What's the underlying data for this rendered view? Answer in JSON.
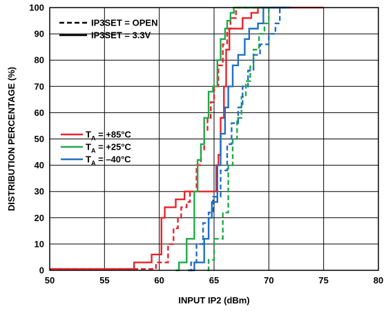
{
  "chart_data": {
    "type": "line",
    "title": "",
    "xlabel": "INPUT IP2 (dBm)",
    "ylabel": "DISTRIBUTION PERCENTAGE (%)",
    "xlim": [
      50,
      80
    ],
    "ylim": [
      0,
      100
    ],
    "x_ticks": [
      "50",
      "55",
      "60",
      "65",
      "70",
      "75",
      "80"
    ],
    "y_ticks": [
      "0",
      "10",
      "20",
      "30",
      "40",
      "50",
      "60",
      "70",
      "80",
      "90",
      "100"
    ],
    "grid": true,
    "style_legend": [
      {
        "label": "IP3SET = OPEN",
        "dash": "dashed"
      },
      {
        "label": "IP3SET = 3.3V",
        "dash": "solid"
      }
    ],
    "color_legend": [
      {
        "prefix": "T",
        "sub": "A",
        "suffix": " = +85°C",
        "color": "#e8232a"
      },
      {
        "prefix": "T",
        "sub": "A",
        "suffix": " = +25°C",
        "color": "#1faa4a"
      },
      {
        "prefix": "T",
        "sub": "A",
        "suffix": " = –40°C",
        "color": "#1f6fc4"
      }
    ],
    "series": [
      {
        "temp": "+85°C",
        "ip3set": "3.3V",
        "color": "#e8232a",
        "dash": "solid",
        "points": [
          [
            50,
            0.5
          ],
          [
            57.7,
            0.5
          ],
          [
            57.7,
            3
          ],
          [
            59.3,
            3
          ],
          [
            59.3,
            6
          ],
          [
            60.2,
            6
          ],
          [
            60.2,
            20
          ],
          [
            60.5,
            20
          ],
          [
            60.5,
            24
          ],
          [
            61.5,
            24
          ],
          [
            61.5,
            27
          ],
          [
            62.3,
            27
          ],
          [
            62.3,
            30
          ],
          [
            65.2,
            30
          ],
          [
            65.2,
            40
          ],
          [
            65.4,
            40
          ],
          [
            65.4,
            44
          ],
          [
            65.6,
            44
          ],
          [
            65.6,
            58
          ],
          [
            65.9,
            58
          ],
          [
            65.9,
            70
          ],
          [
            66.1,
            70
          ],
          [
            66.1,
            84
          ],
          [
            66.4,
            84
          ],
          [
            66.4,
            92
          ],
          [
            67.6,
            92
          ],
          [
            67.6,
            96
          ],
          [
            68.4,
            96
          ],
          [
            68.4,
            98
          ],
          [
            69.0,
            98
          ],
          [
            69.0,
            100
          ],
          [
            75,
            100
          ]
        ]
      },
      {
        "temp": "+85°C",
        "ip3set": "OPEN",
        "color": "#e8232a",
        "dash": "dashed",
        "points": [
          [
            50,
            0.5
          ],
          [
            59.7,
            0.5
          ],
          [
            59.7,
            3
          ],
          [
            60.8,
            3
          ],
          [
            60.8,
            10
          ],
          [
            61.3,
            10
          ],
          [
            61.3,
            16
          ],
          [
            61.7,
            16
          ],
          [
            61.7,
            20
          ],
          [
            62.0,
            20
          ],
          [
            62.0,
            24
          ],
          [
            62.5,
            24
          ],
          [
            62.5,
            26
          ],
          [
            62.8,
            26
          ],
          [
            62.8,
            30
          ],
          [
            63.4,
            30
          ],
          [
            63.4,
            40
          ],
          [
            63.8,
            40
          ],
          [
            63.8,
            46
          ],
          [
            64.1,
            46
          ],
          [
            64.1,
            53
          ],
          [
            64.4,
            53
          ],
          [
            64.4,
            58
          ],
          [
            64.7,
            58
          ],
          [
            64.7,
            64
          ],
          [
            65.0,
            64
          ],
          [
            65.0,
            70
          ],
          [
            65.4,
            70
          ],
          [
            65.4,
            78
          ],
          [
            65.8,
            78
          ],
          [
            65.8,
            86
          ],
          [
            66.2,
            86
          ],
          [
            66.2,
            92
          ],
          [
            66.5,
            92
          ],
          [
            66.5,
            96
          ],
          [
            67.0,
            96
          ],
          [
            67.0,
            100
          ],
          [
            69.5,
            100
          ]
        ]
      },
      {
        "temp": "+25°C",
        "ip3set": "3.3V",
        "color": "#1faa4a",
        "dash": "solid",
        "points": [
          [
            61.5,
            0
          ],
          [
            61.8,
            0
          ],
          [
            61.8,
            3
          ],
          [
            62.5,
            3
          ],
          [
            62.5,
            12
          ],
          [
            63.2,
            12
          ],
          [
            63.2,
            30
          ],
          [
            63.5,
            30
          ],
          [
            63.5,
            42
          ],
          [
            63.8,
            42
          ],
          [
            63.8,
            48
          ],
          [
            64.1,
            48
          ],
          [
            64.1,
            58
          ],
          [
            64.5,
            58
          ],
          [
            64.5,
            68
          ],
          [
            64.9,
            68
          ],
          [
            64.9,
            70
          ],
          [
            65.3,
            70
          ],
          [
            65.3,
            80
          ],
          [
            65.6,
            80
          ],
          [
            65.6,
            88
          ],
          [
            66.0,
            88
          ],
          [
            66.0,
            92
          ],
          [
            66.2,
            92
          ],
          [
            66.2,
            95
          ],
          [
            66.5,
            95
          ],
          [
            66.5,
            98
          ],
          [
            66.8,
            98
          ],
          [
            66.8,
            100
          ],
          [
            69.5,
            100
          ]
        ]
      },
      {
        "temp": "+25°C",
        "ip3set": "OPEN",
        "color": "#1faa4a",
        "dash": "dashed",
        "points": [
          [
            64.4,
            0
          ],
          [
            64.5,
            0
          ],
          [
            64.5,
            4
          ],
          [
            65.0,
            4
          ],
          [
            65.0,
            12
          ],
          [
            65.8,
            12
          ],
          [
            65.8,
            22
          ],
          [
            66.3,
            22
          ],
          [
            66.3,
            40
          ],
          [
            66.7,
            40
          ],
          [
            66.7,
            50
          ],
          [
            67.1,
            50
          ],
          [
            67.1,
            58
          ],
          [
            67.5,
            58
          ],
          [
            67.5,
            66
          ],
          [
            67.9,
            66
          ],
          [
            67.9,
            72
          ],
          [
            68.3,
            72
          ],
          [
            68.3,
            78
          ],
          [
            68.6,
            78
          ],
          [
            68.6,
            84
          ],
          [
            69.1,
            84
          ],
          [
            69.1,
            90
          ],
          [
            69.6,
            90
          ],
          [
            69.6,
            94
          ],
          [
            70.0,
            94
          ],
          [
            70.0,
            100
          ],
          [
            71.5,
            100
          ]
        ]
      },
      {
        "temp": "–40°C",
        "ip3set": "3.3V",
        "color": "#1f6fc4",
        "dash": "solid",
        "points": [
          [
            62.8,
            0
          ],
          [
            63.2,
            0
          ],
          [
            63.2,
            3
          ],
          [
            64.1,
            3
          ],
          [
            64.1,
            12
          ],
          [
            64.5,
            12
          ],
          [
            64.5,
            20
          ],
          [
            64.8,
            20
          ],
          [
            64.8,
            26
          ],
          [
            65.3,
            26
          ],
          [
            65.3,
            40
          ],
          [
            65.6,
            40
          ],
          [
            65.6,
            52
          ],
          [
            66.0,
            52
          ],
          [
            66.0,
            62
          ],
          [
            66.3,
            62
          ],
          [
            66.3,
            70
          ],
          [
            66.7,
            70
          ],
          [
            66.7,
            78
          ],
          [
            67.2,
            78
          ],
          [
            67.2,
            82
          ],
          [
            67.8,
            82
          ],
          [
            67.8,
            88
          ],
          [
            68.2,
            88
          ],
          [
            68.2,
            92
          ],
          [
            69.0,
            92
          ],
          [
            69.0,
            94
          ],
          [
            69.5,
            94
          ],
          [
            69.5,
            100
          ],
          [
            72,
            100
          ]
        ]
      },
      {
        "temp": "–40°C",
        "ip3set": "OPEN",
        "color": "#1f6fc4",
        "dash": "dashed",
        "points": [
          [
            62.6,
            0
          ],
          [
            62.9,
            0
          ],
          [
            62.9,
            3
          ],
          [
            63.4,
            3
          ],
          [
            63.4,
            10
          ],
          [
            64.0,
            10
          ],
          [
            64.0,
            18
          ],
          [
            64.5,
            18
          ],
          [
            64.5,
            22
          ],
          [
            64.9,
            22
          ],
          [
            64.9,
            28
          ],
          [
            65.6,
            28
          ],
          [
            65.6,
            38
          ],
          [
            66.2,
            38
          ],
          [
            66.2,
            48
          ],
          [
            66.6,
            48
          ],
          [
            66.6,
            56
          ],
          [
            67.2,
            56
          ],
          [
            67.2,
            62
          ],
          [
            67.6,
            62
          ],
          [
            67.6,
            70
          ],
          [
            68.1,
            70
          ],
          [
            68.1,
            76
          ],
          [
            68.6,
            76
          ],
          [
            68.6,
            82
          ],
          [
            69.2,
            82
          ],
          [
            69.2,
            86
          ],
          [
            70.0,
            86
          ],
          [
            70.0,
            90
          ],
          [
            70.6,
            90
          ],
          [
            70.6,
            94
          ],
          [
            71.0,
            94
          ],
          [
            71.0,
            100
          ],
          [
            72,
            100
          ]
        ]
      }
    ]
  }
}
